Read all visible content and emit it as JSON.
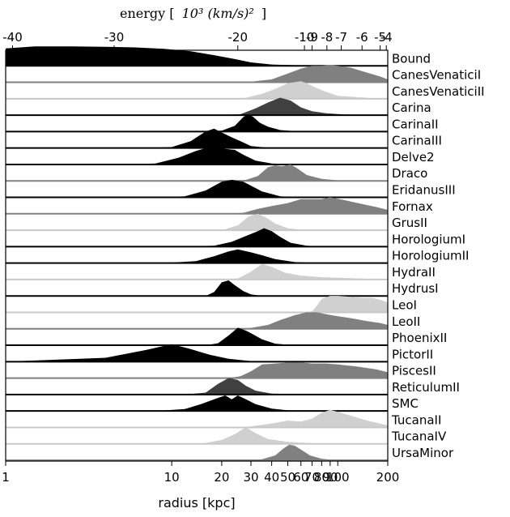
{
  "chart_data": {
    "type": "area",
    "subtype": "ridgeline",
    "xlabel": "radius [kpc]",
    "xscale": "log",
    "xlim": [
      1,
      200
    ],
    "x_ticks": [
      1,
      10,
      20,
      30,
      40,
      50,
      60,
      70,
      80,
      90,
      100,
      200
    ],
    "top_axis": {
      "label_text": "energy [",
      "label_math": "10³  (km/s)²",
      "label_close": "]",
      "ticks": [
        {
          "label": "-40",
          "radius": 1.1
        },
        {
          "label": "-30",
          "radius": 4.5
        },
        {
          "label": "-20",
          "radius": 25
        },
        {
          "label": "-10",
          "radius": 63
        },
        {
          "label": "-9",
          "radius": 70
        },
        {
          "label": "-8",
          "radius": 86
        },
        {
          "label": "-7",
          "radius": 105
        },
        {
          "label": "-6",
          "radius": 140
        },
        {
          "label": "-5",
          "radius": 180
        },
        {
          "label": "-4",
          "radius": 196
        }
      ]
    },
    "series": [
      {
        "name": "Bound",
        "color": "#000000",
        "points": [
          [
            1,
            0.9
          ],
          [
            1.5,
            1
          ],
          [
            2.5,
            1
          ],
          [
            4,
            0.98
          ],
          [
            6,
            0.95
          ],
          [
            9,
            0.88
          ],
          [
            13,
            0.75
          ],
          [
            18,
            0.55
          ],
          [
            24,
            0.35
          ],
          [
            30,
            0.18
          ],
          [
            40,
            0.07
          ],
          [
            60,
            0.02
          ],
          [
            100,
            0
          ]
        ]
      },
      {
        "name": "CanesVenaticiI",
        "color": "#808080",
        "points": [
          [
            20,
            0
          ],
          [
            30,
            0.03
          ],
          [
            40,
            0.15
          ],
          [
            50,
            0.45
          ],
          [
            60,
            0.7
          ],
          [
            70,
            0.85
          ],
          [
            80,
            0.85
          ],
          [
            90,
            0.9
          ],
          [
            100,
            0.85
          ],
          [
            120,
            0.75
          ],
          [
            150,
            0.5
          ],
          [
            180,
            0.3
          ],
          [
            200,
            0.15
          ]
        ]
      },
      {
        "name": "CanesVenaticiII",
        "color": "#d0d0d0",
        "points": [
          [
            20,
            0
          ],
          [
            28,
            0.05
          ],
          [
            35,
            0.25
          ],
          [
            42,
            0.5
          ],
          [
            50,
            0.8
          ],
          [
            55,
            0.85
          ],
          [
            60,
            0.9
          ],
          [
            65,
            0.8
          ],
          [
            72,
            0.6
          ],
          [
            85,
            0.35
          ],
          [
            100,
            0.15
          ],
          [
            150,
            0.05
          ],
          [
            200,
            0
          ]
        ]
      },
      {
        "name": "Carina",
        "color": "#404040",
        "points": [
          [
            20,
            0
          ],
          [
            26,
            0.05
          ],
          [
            32,
            0.35
          ],
          [
            38,
            0.65
          ],
          [
            45,
            0.9
          ],
          [
            52,
            0.75
          ],
          [
            60,
            0.4
          ],
          [
            70,
            0.2
          ],
          [
            85,
            0.1
          ],
          [
            110,
            0.04
          ],
          [
            150,
            0
          ]
        ]
      },
      {
        "name": "CarinaII",
        "color": "#000000",
        "points": [
          [
            15,
            0
          ],
          [
            20,
            0.05
          ],
          [
            24,
            0.3
          ],
          [
            27,
            0.75
          ],
          [
            29,
            0.9
          ],
          [
            31,
            0.75
          ],
          [
            34,
            0.45
          ],
          [
            38,
            0.25
          ],
          [
            45,
            0.08
          ],
          [
            60,
            0
          ]
        ]
      },
      {
        "name": "CarinaIII",
        "color": "#000000",
        "points": [
          [
            7,
            0
          ],
          [
            10,
            0.05
          ],
          [
            13,
            0.35
          ],
          [
            16,
            0.85
          ],
          [
            18,
            1
          ],
          [
            20,
            0.8
          ],
          [
            23,
            0.55
          ],
          [
            26,
            0.35
          ],
          [
            30,
            0.1
          ],
          [
            40,
            0
          ]
        ]
      },
      {
        "name": "Delve2",
        "color": "#000000",
        "points": [
          [
            5,
            0
          ],
          [
            8,
            0.05
          ],
          [
            11,
            0.35
          ],
          [
            14,
            0.7
          ],
          [
            17,
            0.9
          ],
          [
            19,
            0.9
          ],
          [
            21,
            0.8
          ],
          [
            24,
            0.75
          ],
          [
            27,
            0.5
          ],
          [
            32,
            0.2
          ],
          [
            40,
            0.05
          ],
          [
            55,
            0
          ]
        ]
      },
      {
        "name": "Draco",
        "color": "#808080",
        "points": [
          [
            20,
            0
          ],
          [
            28,
            0.05
          ],
          [
            33,
            0.25
          ],
          [
            38,
            0.7
          ],
          [
            42,
            0.8
          ],
          [
            46,
            0.75
          ],
          [
            52,
            0.85
          ],
          [
            58,
            0.6
          ],
          [
            65,
            0.3
          ],
          [
            80,
            0.1
          ],
          [
            110,
            0
          ]
        ]
      },
      {
        "name": "EridanusIII",
        "color": "#000000",
        "points": [
          [
            8,
            0
          ],
          [
            12,
            0.05
          ],
          [
            16,
            0.35
          ],
          [
            20,
            0.8
          ],
          [
            23,
            0.9
          ],
          [
            27,
            0.8
          ],
          [
            30,
            0.6
          ],
          [
            35,
            0.3
          ],
          [
            45,
            0.05
          ],
          [
            60,
            0
          ]
        ]
      },
      {
        "name": "Fornax",
        "color": "#808080",
        "points": [
          [
            22,
            0
          ],
          [
            27,
            0.05
          ],
          [
            33,
            0.25
          ],
          [
            40,
            0.4
          ],
          [
            50,
            0.55
          ],
          [
            60,
            0.75
          ],
          [
            70,
            0.75
          ],
          [
            80,
            0.75
          ],
          [
            90,
            0.85
          ],
          [
            110,
            0.7
          ],
          [
            140,
            0.5
          ],
          [
            170,
            0.35
          ],
          [
            200,
            0.2
          ]
        ]
      },
      {
        "name": "GrusII",
        "color": "#d0d0d0",
        "points": [
          [
            20,
            0
          ],
          [
            25,
            0.25
          ],
          [
            29,
            0.7
          ],
          [
            33,
            0.85
          ],
          [
            37,
            0.65
          ],
          [
            42,
            0.35
          ],
          [
            50,
            0.1
          ],
          [
            65,
            0
          ]
        ]
      },
      {
        "name": "HorologiumI",
        "color": "#000000",
        "points": [
          [
            12,
            0
          ],
          [
            18,
            0.05
          ],
          [
            23,
            0.25
          ],
          [
            28,
            0.55
          ],
          [
            33,
            0.8
          ],
          [
            36,
            0.95
          ],
          [
            40,
            0.8
          ],
          [
            45,
            0.5
          ],
          [
            52,
            0.2
          ],
          [
            65,
            0.05
          ],
          [
            80,
            0
          ]
        ]
      },
      {
        "name": "HorologiumII",
        "color": "#000000",
        "points": [
          [
            9,
            0
          ],
          [
            14,
            0.1
          ],
          [
            18,
            0.35
          ],
          [
            22,
            0.6
          ],
          [
            25,
            0.7
          ],
          [
            30,
            0.55
          ],
          [
            35,
            0.4
          ],
          [
            42,
            0.2
          ],
          [
            55,
            0.05
          ],
          [
            70,
            0
          ]
        ]
      },
      {
        "name": "HydraII",
        "color": "#d0d0d0",
        "points": [
          [
            18,
            0
          ],
          [
            25,
            0.05
          ],
          [
            30,
            0.4
          ],
          [
            35,
            0.8
          ],
          [
            40,
            0.65
          ],
          [
            48,
            0.35
          ],
          [
            60,
            0.2
          ],
          [
            80,
            0.12
          ],
          [
            110,
            0.08
          ],
          [
            150,
            0.04
          ],
          [
            200,
            0
          ]
        ]
      },
      {
        "name": "HydrusI",
        "color": "#000000",
        "points": [
          [
            16,
            0
          ],
          [
            18,
            0.2
          ],
          [
            20,
            0.7
          ],
          [
            22,
            0.8
          ],
          [
            24,
            0.55
          ],
          [
            27,
            0.25
          ],
          [
            30,
            0.08
          ],
          [
            35,
            0
          ]
        ]
      },
      {
        "name": "LeoI",
        "color": "#d0d0d0",
        "points": [
          [
            60,
            0
          ],
          [
            70,
            0.05
          ],
          [
            75,
            0.35
          ],
          [
            80,
            0.7
          ],
          [
            90,
            0.85
          ],
          [
            100,
            0.85
          ],
          [
            120,
            0.8
          ],
          [
            140,
            0.75
          ],
          [
            160,
            0.75
          ],
          [
            180,
            0.65
          ],
          [
            200,
            0.5
          ]
        ]
      },
      {
        "name": "LeoII",
        "color": "#808080",
        "points": [
          [
            22,
            0
          ],
          [
            30,
            0.05
          ],
          [
            38,
            0.2
          ],
          [
            45,
            0.45
          ],
          [
            55,
            0.7
          ],
          [
            65,
            0.85
          ],
          [
            75,
            0.85
          ],
          [
            85,
            0.75
          ],
          [
            100,
            0.65
          ],
          [
            120,
            0.55
          ],
          [
            150,
            0.4
          ],
          [
            180,
            0.3
          ],
          [
            200,
            0.2
          ]
        ]
      },
      {
        "name": "PhoenixII",
        "color": "#000000",
        "points": [
          [
            16,
            0
          ],
          [
            19,
            0.1
          ],
          [
            22,
            0.5
          ],
          [
            25,
            0.9
          ],
          [
            28,
            0.75
          ],
          [
            31,
            0.55
          ],
          [
            35,
            0.3
          ],
          [
            42,
            0.08
          ],
          [
            55,
            0
          ]
        ]
      },
      {
        "name": "PictorII",
        "color": "#000000",
        "points": [
          [
            1,
            0
          ],
          [
            4,
            0.2
          ],
          [
            7,
            0.6
          ],
          [
            10,
            0.9
          ],
          [
            13,
            0.65
          ],
          [
            17,
            0.35
          ],
          [
            22,
            0.15
          ],
          [
            30,
            0.03
          ],
          [
            40,
            0
          ]
        ]
      },
      {
        "name": "PiscesII",
        "color": "#808080",
        "points": [
          [
            22,
            0
          ],
          [
            26,
            0.1
          ],
          [
            30,
            0.35
          ],
          [
            35,
            0.7
          ],
          [
            42,
            0.75
          ],
          [
            50,
            0.8
          ],
          [
            60,
            0.8
          ],
          [
            70,
            0.75
          ],
          [
            85,
            0.75
          ],
          [
            100,
            0.7
          ],
          [
            130,
            0.6
          ],
          [
            170,
            0.45
          ],
          [
            200,
            0.3
          ]
        ]
      },
      {
        "name": "ReticulumII",
        "color": "#404040",
        "points": [
          [
            12,
            0
          ],
          [
            16,
            0.1
          ],
          [
            19,
            0.55
          ],
          [
            22,
            0.85
          ],
          [
            25,
            0.75
          ],
          [
            28,
            0.45
          ],
          [
            32,
            0.2
          ],
          [
            40,
            0.05
          ],
          [
            55,
            0
          ]
        ]
      },
      {
        "name": "SMC",
        "color": "#000000",
        "points": [
          [
            8,
            0
          ],
          [
            12,
            0.1
          ],
          [
            15,
            0.35
          ],
          [
            18,
            0.6
          ],
          [
            21,
            0.8
          ],
          [
            23,
            0.6
          ],
          [
            25,
            0.8
          ],
          [
            28,
            0.6
          ],
          [
            32,
            0.35
          ],
          [
            40,
            0.12
          ],
          [
            55,
            0
          ]
        ]
      },
      {
        "name": "TucanaII",
        "color": "#d0d0d0",
        "points": [
          [
            22,
            0
          ],
          [
            30,
            0.05
          ],
          [
            40,
            0.2
          ],
          [
            50,
            0.35
          ],
          [
            60,
            0.3
          ],
          [
            70,
            0.45
          ],
          [
            80,
            0.75
          ],
          [
            90,
            0.9
          ],
          [
            100,
            0.8
          ],
          [
            120,
            0.6
          ],
          [
            150,
            0.35
          ],
          [
            180,
            0.2
          ],
          [
            200,
            0.1
          ]
        ]
      },
      {
        "name": "TucanaIV",
        "color": "#d0d0d0",
        "points": [
          [
            15,
            0
          ],
          [
            20,
            0.2
          ],
          [
            24,
            0.5
          ],
          [
            28,
            0.85
          ],
          [
            32,
            0.55
          ],
          [
            38,
            0.25
          ],
          [
            50,
            0.1
          ],
          [
            70,
            0.03
          ],
          [
            100,
            0
          ]
        ]
      },
      {
        "name": "UrsaMinor",
        "color": "#808080",
        "points": [
          [
            25,
            0
          ],
          [
            35,
            0.05
          ],
          [
            42,
            0.25
          ],
          [
            47,
            0.6
          ],
          [
            51,
            0.8
          ],
          [
            55,
            0.75
          ],
          [
            60,
            0.55
          ],
          [
            68,
            0.25
          ],
          [
            80,
            0.08
          ],
          [
            100,
            0
          ]
        ]
      }
    ]
  }
}
